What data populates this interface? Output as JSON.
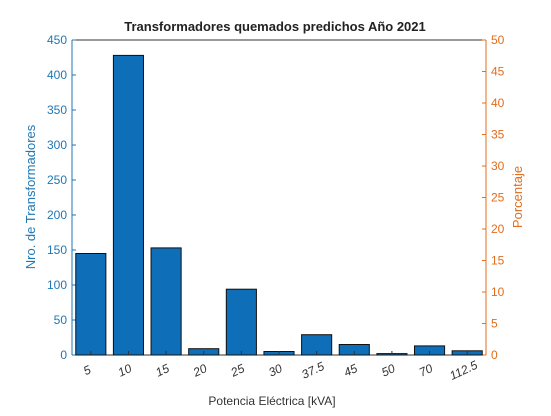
{
  "chart_data": {
    "type": "bar",
    "title": "Transformadores quemados predichos Año 2021",
    "xlabel": "Potencia Eléctrica [kVA]",
    "ylabel": "Nro. de Transformadores",
    "ylabel_right": "Porcentaje",
    "categories": [
      "5",
      "10",
      "15",
      "20",
      "25",
      "30",
      "37.5",
      "45",
      "50",
      "70",
      "112.5"
    ],
    "values": [
      145,
      428,
      153,
      9,
      94,
      5,
      29,
      15,
      2,
      13,
      6
    ],
    "ylim": [
      0,
      450
    ],
    "ylim_right": [
      0,
      50
    ],
    "yticks": [
      "0",
      "50",
      "100",
      "150",
      "200",
      "250",
      "300",
      "350",
      "400",
      "450"
    ],
    "yticks_right": [
      "0",
      "5",
      "10",
      "15",
      "20",
      "25",
      "30",
      "35",
      "40",
      "45",
      "50"
    ],
    "grid": false,
    "colors": {
      "bar": "#0f6eb8",
      "bar_edge": "#111111",
      "left_axis": "#1f77b4",
      "right_axis": "#e46c1b",
      "text": "#222222"
    }
  }
}
